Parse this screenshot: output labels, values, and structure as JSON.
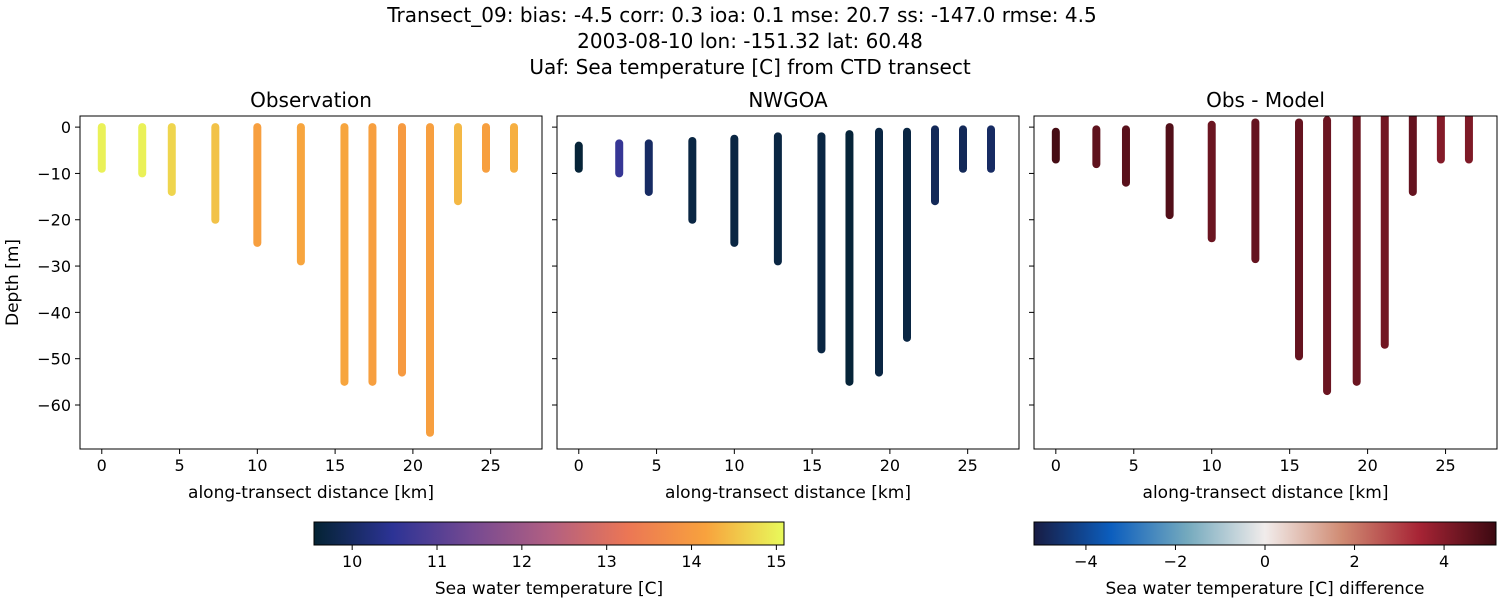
{
  "title_lines": [
    "Transect_09: bias: -4.5  corr: 0.3  ioa: 0.1  mse: 20.7  ss: -147.0  rmse: 4.5",
    "2003-08-10 lon: -151.32 lat: 60.48",
    "Uaf: Sea temperature [C] from CTD transect"
  ],
  "chart_data": [
    {
      "type": "scatter",
      "title": "Observation",
      "xlabel": "along-transect distance [km]",
      "ylabel": "Depth [m]",
      "xlim": [
        -1.4,
        28.3
      ],
      "ylim": [
        -69.5,
        2.4
      ],
      "xticks": [
        0,
        5,
        10,
        15,
        20,
        25
      ],
      "yticks": [
        0,
        -10,
        -20,
        -30,
        -40,
        -50,
        -60
      ],
      "grid": false,
      "profiles": [
        {
          "x": 0,
          "top": 0,
          "bottom": -9,
          "value": 15.0
        },
        {
          "x": 2.6,
          "top": 0,
          "bottom": -10,
          "value": 15.0
        },
        {
          "x": 4.5,
          "top": 0,
          "bottom": -14,
          "value": 14.7
        },
        {
          "x": 7.3,
          "top": 0,
          "bottom": -20,
          "value": 14.5
        },
        {
          "x": 10.0,
          "top": 0,
          "bottom": -25,
          "value": 14.1
        },
        {
          "x": 12.8,
          "top": 0,
          "bottom": -29,
          "value": 14.2
        },
        {
          "x": 15.6,
          "top": 0,
          "bottom": -55,
          "value": 14.2
        },
        {
          "x": 17.4,
          "top": 0,
          "bottom": -55,
          "value": 14.1
        },
        {
          "x": 19.3,
          "top": 0,
          "bottom": -53,
          "value": 14.0
        },
        {
          "x": 21.1,
          "top": 0,
          "bottom": -66,
          "value": 14.1
        },
        {
          "x": 22.9,
          "top": 0,
          "bottom": -16,
          "value": 14.4
        },
        {
          "x": 24.7,
          "top": 0,
          "bottom": -9,
          "value": 14.1
        },
        {
          "x": 26.5,
          "top": 0,
          "bottom": -9,
          "value": 14.3
        }
      ]
    },
    {
      "type": "scatter",
      "title": "NWGOA",
      "xlabel": "along-transect distance [km]",
      "xlim": [
        -1.4,
        28.3
      ],
      "ylim": [
        -69.5,
        2.4
      ],
      "xticks": [
        0,
        5,
        10,
        15,
        20,
        25
      ],
      "grid": false,
      "profiles": [
        {
          "x": 0,
          "top": -4,
          "bottom": -9,
          "value": 9.6
        },
        {
          "x": 2.6,
          "top": -3.5,
          "bottom": -10,
          "value": 10.6
        },
        {
          "x": 4.5,
          "top": -3.5,
          "bottom": -14,
          "value": 10.0
        },
        {
          "x": 7.3,
          "top": -3,
          "bottom": -20,
          "value": 9.7
        },
        {
          "x": 10.0,
          "top": -2.5,
          "bottom": -25,
          "value": 9.7
        },
        {
          "x": 12.8,
          "top": -2,
          "bottom": -29,
          "value": 9.7
        },
        {
          "x": 15.6,
          "top": -2,
          "bottom": -48,
          "value": 9.7
        },
        {
          "x": 17.4,
          "top": -1.5,
          "bottom": -55,
          "value": 9.6
        },
        {
          "x": 19.3,
          "top": -1,
          "bottom": -53,
          "value": 9.7
        },
        {
          "x": 21.1,
          "top": -1,
          "bottom": -45.5,
          "value": 9.7
        },
        {
          "x": 22.9,
          "top": -0.5,
          "bottom": -16,
          "value": 9.9
        },
        {
          "x": 24.7,
          "top": -0.5,
          "bottom": -9,
          "value": 9.9
        },
        {
          "x": 26.5,
          "top": -0.5,
          "bottom": -9,
          "value": 10.0
        }
      ]
    },
    {
      "type": "scatter",
      "title": "Obs - Model",
      "xlabel": "along-transect distance [km]",
      "xlim": [
        -1.4,
        28.3
      ],
      "ylim": [
        -69.5,
        2.4
      ],
      "xticks": [
        0,
        5,
        10,
        15,
        20,
        25
      ],
      "grid": false,
      "profiles": [
        {
          "x": 0,
          "top": -1,
          "bottom": -7,
          "value": 5.0
        },
        {
          "x": 2.6,
          "top": -0.5,
          "bottom": -8,
          "value": 4.6
        },
        {
          "x": 4.5,
          "top": -0.5,
          "bottom": -12,
          "value": 4.7
        },
        {
          "x": 7.3,
          "top": 0,
          "bottom": -19,
          "value": 4.8
        },
        {
          "x": 10.0,
          "top": 0.5,
          "bottom": -24,
          "value": 4.4
        },
        {
          "x": 12.8,
          "top": 1,
          "bottom": -28.5,
          "value": 4.5
        },
        {
          "x": 15.6,
          "top": 1,
          "bottom": -49.5,
          "value": 4.5
        },
        {
          "x": 17.4,
          "top": 1.5,
          "bottom": -57,
          "value": 4.4
        },
        {
          "x": 19.3,
          "top": 2.4,
          "bottom": -55,
          "value": 4.4
        },
        {
          "x": 21.1,
          "top": 2.4,
          "bottom": -47,
          "value": 4.3
        },
        {
          "x": 22.9,
          "top": 2.4,
          "bottom": -14,
          "value": 4.5
        },
        {
          "x": 24.7,
          "top": 2.4,
          "bottom": -7,
          "value": 4.0
        },
        {
          "x": 26.5,
          "top": 2.4,
          "bottom": -7,
          "value": 4.1
        }
      ]
    }
  ],
  "colorbars": [
    {
      "label": "Sea water temperature [C]",
      "range": [
        9.55,
        15.09
      ],
      "ticks": [
        10,
        11,
        12,
        13,
        14,
        15
      ],
      "colors": [
        "#042333",
        "#2c3395",
        "#744992",
        "#b15f82",
        "#eb7655",
        "#f8a23d",
        "#e8fa5b"
      ]
    },
    {
      "label": "Sea water temperature [C] difference",
      "range": [
        -5.16,
        5.16
      ],
      "ticks": [
        -4,
        -2,
        0,
        2,
        4
      ],
      "colors": [
        "#181c43",
        "#0c5ebe",
        "#75aabe",
        "#f1eceb",
        "#d08b73",
        "#a72435",
        "#3c0911"
      ]
    }
  ]
}
